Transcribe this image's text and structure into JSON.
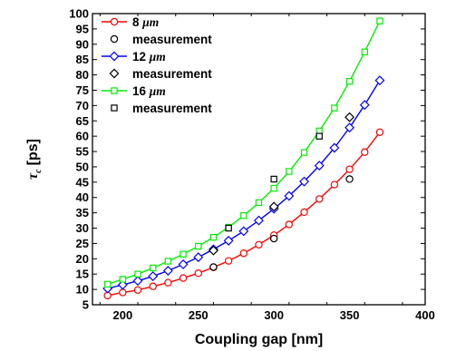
{
  "chart_data": {
    "type": "line",
    "xlabel": "Coupling gap [nm]",
    "ylabel": {
      "symbol": "τ",
      "subscript": "c",
      "unit": "[ps]"
    },
    "xlim": [
      180,
      400
    ],
    "ylim": [
      5,
      100
    ],
    "xticks": [
      200,
      250,
      300,
      350,
      400
    ],
    "yticks": [
      5,
      10,
      15,
      20,
      25,
      30,
      35,
      40,
      45,
      50,
      55,
      60,
      65,
      70,
      75,
      80,
      85,
      90,
      95,
      100
    ],
    "grid": false,
    "legend_position": "top-left",
    "series": [
      {
        "name": "8 μm",
        "label_text": "8 ",
        "label_unit": "μm",
        "color": "#ff0000",
        "marker": "circle",
        "x": [
          190,
          200,
          210,
          220,
          230,
          240,
          250,
          260,
          270,
          280,
          290,
          300,
          310,
          320,
          330,
          340,
          350,
          360,
          370
        ],
        "y": [
          8,
          9,
          9.8,
          11,
          12.2,
          13.7,
          15.3,
          17.2,
          19.3,
          21.8,
          24.6,
          27.7,
          31.2,
          35.2,
          39.5,
          44.2,
          49.2,
          54.8,
          61.3
        ]
      },
      {
        "name": "measurement",
        "label_text": "measurement",
        "color": "#000000",
        "marker": "circle-open",
        "x": [
          260,
          300,
          350
        ],
        "y": [
          17.3,
          26.6,
          46
        ]
      },
      {
        "name": "12 μm",
        "label_text": "12 ",
        "label_unit": "μm",
        "color": "#0000ff",
        "marker": "diamond",
        "x": [
          190,
          200,
          210,
          220,
          230,
          240,
          250,
          260,
          270,
          280,
          290,
          300,
          310,
          320,
          330,
          340,
          350,
          360,
          370
        ],
        "y": [
          10.3,
          11.5,
          12.8,
          14.3,
          16.1,
          18.2,
          20.5,
          23.1,
          25.9,
          29,
          32.5,
          36.3,
          40.5,
          45.2,
          50.4,
          56.2,
          62.8,
          70.2,
          78.2
        ]
      },
      {
        "name": "measurement",
        "label_text": "measurement",
        "color": "#000000",
        "marker": "diamond-open",
        "x": [
          260,
          300,
          350
        ],
        "y": [
          22.7,
          37,
          66.2
        ]
      },
      {
        "name": "16 μm",
        "label_text": "16 ",
        "label_unit": "μm",
        "color": "#00ee00",
        "marker": "square",
        "x": [
          190,
          200,
          210,
          220,
          230,
          240,
          250,
          260,
          270,
          280,
          290,
          300,
          310,
          320,
          330,
          340,
          350,
          360,
          370
        ],
        "y": [
          11.7,
          13.3,
          15,
          17,
          19.2,
          21.5,
          24.1,
          27,
          30.3,
          34.1,
          38.3,
          43,
          48.5,
          54.7,
          61.7,
          69.2,
          77.9,
          87.5,
          97.6
        ]
      },
      {
        "name": "measurement",
        "label_text": "measurement",
        "color": "#000000",
        "marker": "square-open",
        "x": [
          270,
          300,
          330
        ],
        "y": [
          30,
          46,
          60
        ]
      }
    ]
  }
}
